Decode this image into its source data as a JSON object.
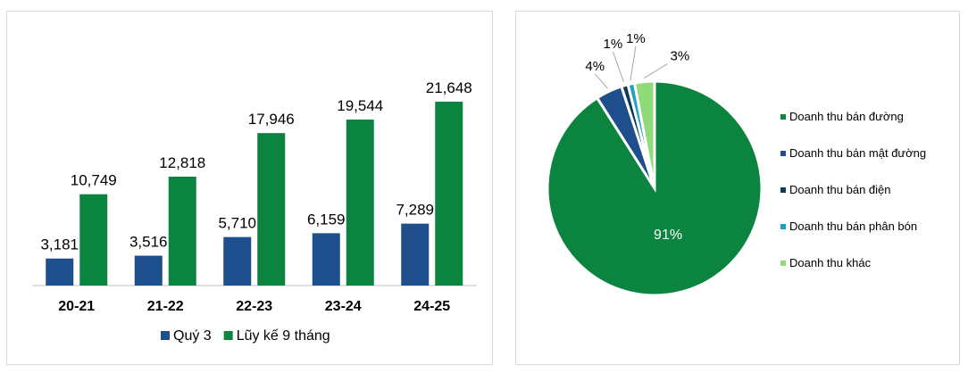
{
  "chart_data": [
    {
      "type": "bar",
      "categories": [
        "20-21",
        "21-22",
        "22-23",
        "23-24",
        "24-25"
      ],
      "series": [
        {
          "name": "Quý 3",
          "values": [
            3181,
            3516,
            5710,
            6159,
            7289
          ],
          "labels": [
            "3,181",
            "3,516",
            "5,710",
            "6,159",
            "7,289"
          ],
          "color": "#1f4e8c"
        },
        {
          "name": "Lũy kế 9 tháng",
          "values": [
            10749,
            12818,
            17946,
            19544,
            21648
          ],
          "labels": [
            "10,749",
            "12,818",
            "17,946",
            "19,544",
            "21,648"
          ],
          "color": "#0b8440"
        }
      ],
      "ylim": [
        0,
        25000
      ],
      "grid": false,
      "legend_position": "bottom"
    },
    {
      "type": "pie",
      "slices": [
        {
          "name": "Doanh thu bán đường",
          "value": 91,
          "label": "91%",
          "color": "#0b8440"
        },
        {
          "name": "Doanh thu bán mật đường",
          "value": 4,
          "label": "4%",
          "color": "#1f4e8c"
        },
        {
          "name": "Doanh thu bán điện",
          "value": 1,
          "label": "1%",
          "color": "#0d3a5a"
        },
        {
          "name": "Doanh thu bán phân bón",
          "value": 1,
          "label": "1%",
          "color": "#1aa3c4"
        },
        {
          "name": "Doanh thu khác",
          "value": 3,
          "label": "3%",
          "color": "#8fdb7a"
        }
      ],
      "legend_position": "right"
    }
  ]
}
